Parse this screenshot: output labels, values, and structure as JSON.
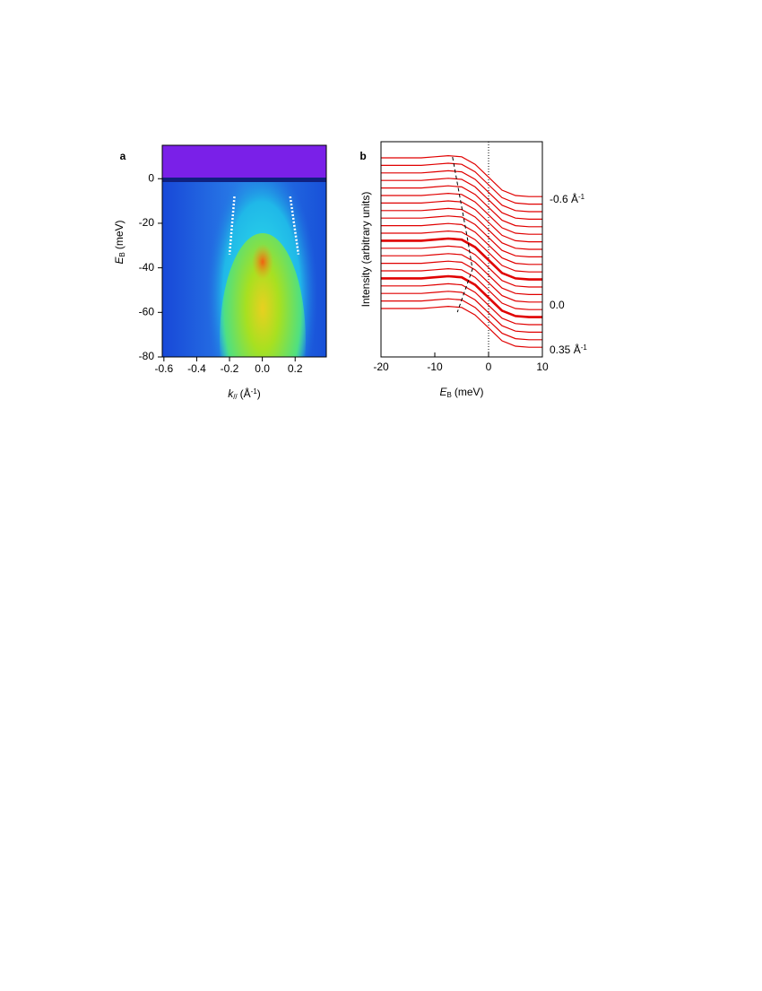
{
  "chart_data": [
    {
      "type": "heatmap",
      "panel": "a",
      "xlabel": {
        "main": "k",
        "sub": "//",
        "open": "(Å",
        "sup": "-1",
        "close": ")"
      },
      "ylabel": {
        "main": "E",
        "sub": "B",
        "rest": "(meV)"
      },
      "xlim": [
        -0.61,
        0.39
      ],
      "ylim": [
        -80,
        15
      ],
      "xticks": [
        -0.6,
        -0.4,
        -0.2,
        {
          "value": 0,
          "label": "0.0"
        },
        0.2
      ],
      "yticks": [
        0,
        -20,
        -40,
        -60,
        -80
      ],
      "guides": [
        {
          "x": [
            -0.17,
            -0.2
          ],
          "y": [
            -8,
            -34
          ]
        },
        {
          "x": [
            0.17,
            0.22
          ],
          "y": [
            -8,
            -34
          ]
        }
      ],
      "guide_color": "#ffffff"
    },
    {
      "type": "line",
      "panel": "b",
      "xlabel": {
        "main": "E",
        "sub": "B",
        "rest": "(meV)"
      },
      "ylabel": "Intensity (arbitrary units)",
      "xlim": [
        -20,
        10
      ],
      "ylim": [
        0,
        100
      ],
      "xticks": [
        -20,
        -10,
        0,
        10
      ],
      "color": "#e00000",
      "line_width": 1.2,
      "vline": 0,
      "guide": {
        "x": [
          -6.7,
          -3.8,
          -3,
          -5.8
        ],
        "y": [
          92.9,
          53.3,
          40.8,
          20.8
        ]
      },
      "x": [
        -20,
        -17.5,
        -15,
        -12.5,
        -10,
        -7.5,
        -5,
        -2.5,
        0,
        2.5,
        5,
        7.5,
        10
      ],
      "series": [
        {
          "values": [
            92.5,
            92.5,
            92.5,
            92.5,
            93,
            93.5,
            93,
            89.5,
            83.5,
            77.5,
            75,
            74.5,
            74.5
          ],
          "label": {
            "text": "-0.6 Å",
            "sup": "-1"
          }
        },
        {
          "values": [
            89,
            89,
            89,
            89,
            89.5,
            90,
            89.5,
            86,
            80,
            74,
            71.5,
            71,
            71
          ]
        },
        {
          "values": [
            85.5,
            85.5,
            85.5,
            85.5,
            86,
            86.5,
            86,
            82.5,
            76.5,
            70.5,
            68,
            67.5,
            67.5
          ]
        },
        {
          "values": [
            82,
            82,
            82,
            82,
            82.5,
            83,
            82.5,
            79,
            73,
            67,
            64.5,
            64,
            64
          ]
        },
        {
          "values": [
            78.5,
            78.5,
            78.5,
            78.5,
            79,
            79.5,
            79,
            75.5,
            69.5,
            63.5,
            61,
            60.5,
            60.5
          ]
        },
        {
          "values": [
            75,
            75,
            75,
            75,
            75.5,
            76,
            75.5,
            72,
            66,
            60,
            57.5,
            57,
            57
          ]
        },
        {
          "values": [
            71.5,
            71.5,
            71.5,
            71.5,
            72,
            72.5,
            72,
            68.5,
            62.5,
            56.5,
            54,
            53.5,
            53.5
          ]
        },
        {
          "values": [
            68,
            68,
            68,
            68,
            68.5,
            69,
            68.5,
            65,
            59,
            53,
            50.5,
            50,
            50
          ]
        },
        {
          "values": [
            64.5,
            64.5,
            64.5,
            64.5,
            65,
            65.5,
            65,
            61.5,
            55.5,
            49.5,
            47,
            46.5,
            46.5
          ]
        },
        {
          "values": [
            61,
            61,
            61,
            61,
            61.5,
            62,
            61.5,
            58,
            52,
            46,
            43.5,
            43,
            43
          ]
        },
        {
          "values": [
            57.5,
            57.5,
            57.5,
            57.5,
            58,
            58.5,
            58,
            54.5,
            48.5,
            42.5,
            40,
            39.5,
            39.5
          ]
        },
        {
          "values": [
            54,
            54,
            54,
            54,
            54.5,
            55,
            54.5,
            51,
            45,
            39,
            36.5,
            36,
            36
          ],
          "line_width": 2.6
        },
        {
          "values": [
            50.5,
            50.5,
            50.5,
            50.5,
            51,
            51.5,
            51,
            47.5,
            41.5,
            35.5,
            33,
            32.5,
            32.5
          ]
        },
        {
          "values": [
            47,
            47,
            47,
            47,
            47.5,
            48,
            47.5,
            44,
            38,
            32,
            29.5,
            29,
            29
          ]
        },
        {
          "values": [
            43.5,
            43.5,
            43.5,
            43.5,
            44,
            44.5,
            44,
            40.5,
            34.5,
            28.5,
            26,
            25.5,
            25.5
          ],
          "label": {
            "text": "0.0"
          }
        },
        {
          "values": [
            40,
            40,
            40,
            40,
            40.5,
            41,
            40.5,
            37,
            31,
            25,
            22.5,
            22,
            22
          ]
        },
        {
          "values": [
            36.5,
            36.5,
            36.5,
            36.5,
            37,
            37.5,
            37,
            33.5,
            27.5,
            21.5,
            19,
            18.5,
            18.5
          ],
          "line_width": 2.6
        },
        {
          "values": [
            33,
            33,
            33,
            33,
            33.5,
            34,
            33.5,
            30,
            24,
            18,
            15.5,
            15,
            15
          ]
        },
        {
          "values": [
            29.5,
            29.5,
            29.5,
            29.5,
            30,
            30.5,
            30,
            26.5,
            20.5,
            14.5,
            12,
            11.5,
            11.5
          ]
        },
        {
          "values": [
            26,
            26,
            26,
            26,
            26.5,
            27,
            26.5,
            23,
            17,
            11,
            8.5,
            8,
            8
          ]
        },
        {
          "values": [
            22.5,
            22.5,
            22.5,
            22.5,
            23,
            23.5,
            23,
            19.5,
            13.5,
            7.5,
            5,
            4.5,
            4.5
          ],
          "label": {
            "text": "0.35 Å",
            "sup": "-1"
          }
        }
      ]
    }
  ]
}
